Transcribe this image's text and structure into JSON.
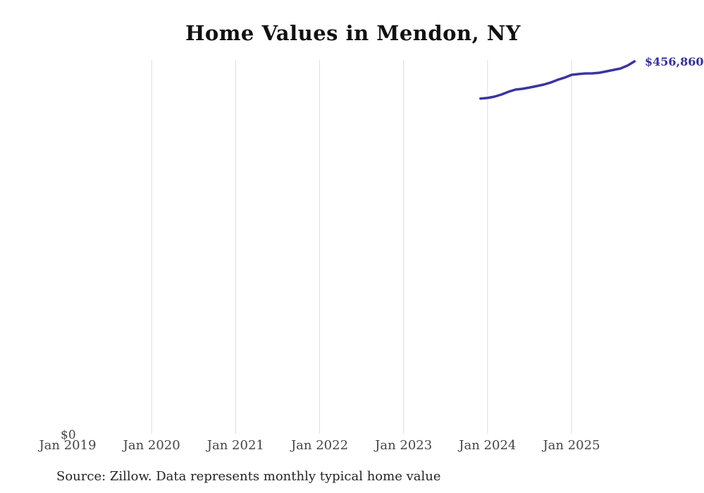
{
  "title": "Home Values in Mendon, NY",
  "source_note": "Source: Zillow. Data represents monthly typical home value",
  "y_axis": {
    "zero_label": "$0"
  },
  "end_label": "$456,860",
  "colors": {
    "background": "#ffffff",
    "line": "#3a35a0",
    "end_label_text": "#32309b",
    "gridline": "#dcdcdc",
    "axis_text": "#454545",
    "title_text": "#111111",
    "source_text": "#242424"
  },
  "chart_data": {
    "type": "line",
    "title": "Home Values in Mendon, NY",
    "xlabel": "",
    "ylabel": "",
    "x_tick_labels": [
      "Jan 2019",
      "Jan 2020",
      "Jan 2021",
      "Jan 2022",
      "Jan 2023",
      "Jan 2024",
      "Jan 2025"
    ],
    "gridlines_at": [
      "Jan 2020",
      "Jan 2021",
      "Jan 2022",
      "Jan 2023",
      "Jan 2024",
      "Jan 2025"
    ],
    "grid": "vertical-only",
    "legend": "none",
    "ylim": [
      0,
      459000
    ],
    "xlim": [
      "Jan 2019",
      "Dec 2025"
    ],
    "last_point_label": "$456,860",
    "series": [
      {
        "name": "Monthly typical home value",
        "points": [
          {
            "month": "Dec 2023",
            "value": 411600
          },
          {
            "month": "Jan 2024",
            "value": 412400
          },
          {
            "month": "Feb 2024",
            "value": 414000
          },
          {
            "month": "Mar 2024",
            "value": 416600
          },
          {
            "month": "Apr 2024",
            "value": 419900
          },
          {
            "month": "May 2024",
            "value": 422600
          },
          {
            "month": "Jun 2024",
            "value": 423500
          },
          {
            "month": "Jul 2024",
            "value": 425100
          },
          {
            "month": "Aug 2024",
            "value": 426800
          },
          {
            "month": "Sep 2024",
            "value": 428600
          },
          {
            "month": "Oct 2024",
            "value": 431100
          },
          {
            "month": "Nov 2024",
            "value": 434400
          },
          {
            "month": "Dec 2024",
            "value": 437100
          },
          {
            "month": "Jan 2025",
            "value": 440500
          },
          {
            "month": "Feb 2025",
            "value": 441400
          },
          {
            "month": "Mar 2025",
            "value": 442200
          },
          {
            "month": "Apr 2025",
            "value": 442300
          },
          {
            "month": "May 2025",
            "value": 443100
          },
          {
            "month": "Jun 2025",
            "value": 444800
          },
          {
            "month": "Jul 2025",
            "value": 446500
          },
          {
            "month": "Aug 2025",
            "value": 448200
          },
          {
            "month": "Sep 2025",
            "value": 451700
          },
          {
            "month": "Oct 2025",
            "value": 456860
          }
        ]
      }
    ]
  }
}
